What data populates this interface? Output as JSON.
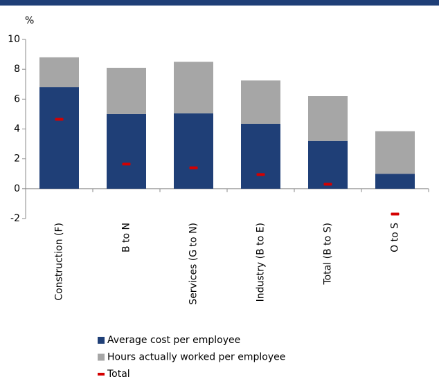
{
  "chart_data": {
    "type": "bar",
    "stacked": true,
    "y_label": "%",
    "categories": [
      "Construction (F)",
      "B to N",
      "Services (G to N)",
      "Industry (B to E)",
      "Total (B to S)",
      "O to S"
    ],
    "series": [
      {
        "name": "Average cost per employee",
        "color": "#1f3f77",
        "values": [
          6.8,
          5.0,
          5.05,
          4.35,
          3.2,
          1.0
        ]
      },
      {
        "name": "Hours actually worked per employee",
        "color": "#a6a6a6",
        "values": [
          2.0,
          3.1,
          3.45,
          2.9,
          3.0,
          2.85
        ]
      },
      {
        "name": "Total",
        "color": "#d40000",
        "marker": "dash",
        "values": [
          4.65,
          1.65,
          1.4,
          0.95,
          0.3,
          -1.7
        ]
      }
    ],
    "ylim": [
      -2,
      10
    ],
    "yticks": [
      -2,
      0,
      2,
      4,
      6,
      8,
      10
    ]
  }
}
